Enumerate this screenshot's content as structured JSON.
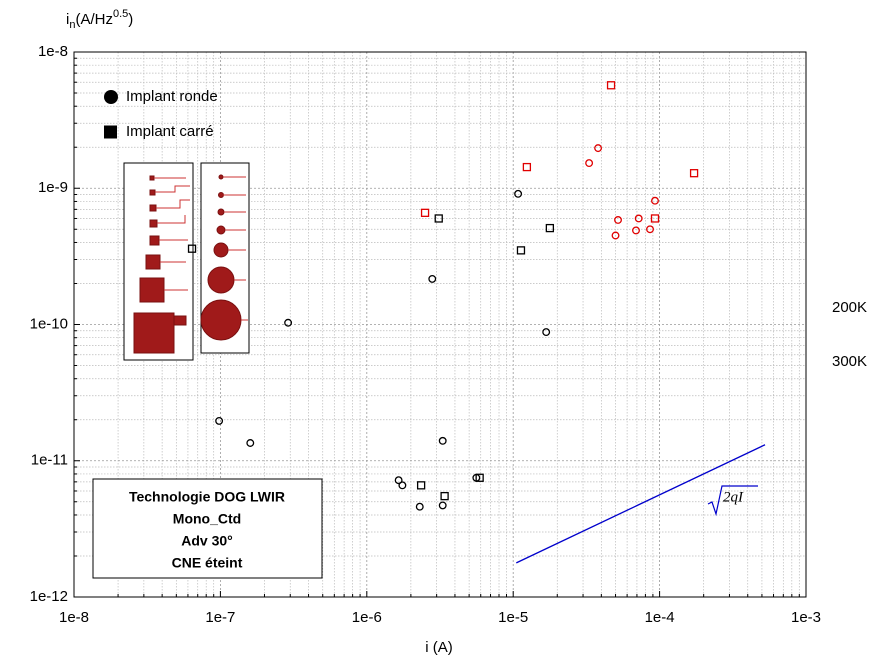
{
  "chart_data": {
    "type": "scatter",
    "x_label": "i (A)",
    "y_label": {
      "main": "i",
      "sub": "n",
      "mid": "(A/Hz",
      "sup": "0.5",
      "end": ")"
    },
    "log_x": true,
    "log_y": true,
    "grid": true,
    "xlim": [
      1e-08,
      0.001
    ],
    "ylim": [
      1e-12,
      1e-08
    ],
    "xticks": [
      {
        "value": 1e-08,
        "label": "1e-8"
      },
      {
        "value": 1e-07,
        "label": "1e-7"
      },
      {
        "value": 1e-06,
        "label": "1e-6"
      },
      {
        "value": 1e-05,
        "label": "1e-5"
      },
      {
        "value": 0.0001,
        "label": "1e-4"
      },
      {
        "value": 0.001,
        "label": "1e-3"
      }
    ],
    "yticks": [
      {
        "value": 1e-12,
        "label": "1e-12"
      },
      {
        "value": 1e-11,
        "label": "1e-11"
      },
      {
        "value": 1e-10,
        "label": "1e-10"
      },
      {
        "value": 1e-09,
        "label": "1e-9"
      },
      {
        "value": 1e-08,
        "label": "1e-8"
      }
    ],
    "shape_legend": [
      {
        "label": "Implant ronde",
        "marker": "circle"
      },
      {
        "label": "Implant carré",
        "marker": "square"
      }
    ],
    "temperature_labels": [
      {
        "label": "200K",
        "color": "#000000"
      },
      {
        "label": "300K",
        "color": "#e00000"
      }
    ],
    "series": [
      {
        "marker": "circle",
        "color": "#000000",
        "x": [
          9.8e-08,
          1.6e-07,
          2.9e-07,
          2.8e-06,
          3.3e-06,
          1.65e-06,
          1.75e-06,
          2.3e-06,
          3.3e-06,
          5.6e-06,
          1.08e-05,
          1.68e-05
        ],
        "values": [
          1.96e-11,
          1.35e-11,
          1.03e-10,
          2.16e-10,
          1.4e-11,
          7.2e-12,
          6.6e-12,
          4.6e-12,
          4.7e-12,
          7.5e-12,
          9.1e-10,
          8.8e-11
        ]
      },
      {
        "marker": "square",
        "color": "#000000",
        "x": [
          6.4e-08,
          3.1e-06,
          2.35e-06,
          3.4e-06,
          5.9e-06,
          1.13e-05,
          1.78e-05
        ],
        "values": [
          3.6e-10,
          6e-10,
          6.6e-12,
          5.5e-12,
          7.5e-12,
          3.5e-10,
          5.1e-10
        ]
      },
      {
        "marker": "circle",
        "color": "#e00000",
        "x": [
          3.3e-05,
          3.8e-05,
          5.2e-05,
          5e-05,
          6.9e-05,
          7.2e-05,
          8.6e-05,
          9.3e-05
        ],
        "values": [
          1.53e-09,
          1.97e-09,
          5.85e-10,
          4.5e-10,
          4.9e-10,
          6e-10,
          5e-10,
          8.1e-10
        ]
      },
      {
        "marker": "square",
        "color": "#e00000",
        "x": [
          2.5e-06,
          1.24e-05,
          4.66e-05,
          9.3e-05,
          0.000172
        ],
        "values": [
          6.6e-10,
          1.43e-09,
          5.7e-09,
          6e-10,
          1.29e-09
        ]
      }
    ],
    "fit_line": {
      "label": "2qI",
      "color": "#0000cc",
      "x": [
        1.05e-05,
        0.000525
      ],
      "values": [
        1.78e-12,
        1.31e-11
      ]
    },
    "annotation": [
      "Technologie DOG LWIR",
      "Mono_Ctd",
      "Adv 30°",
      "CNE éteint"
    ]
  }
}
